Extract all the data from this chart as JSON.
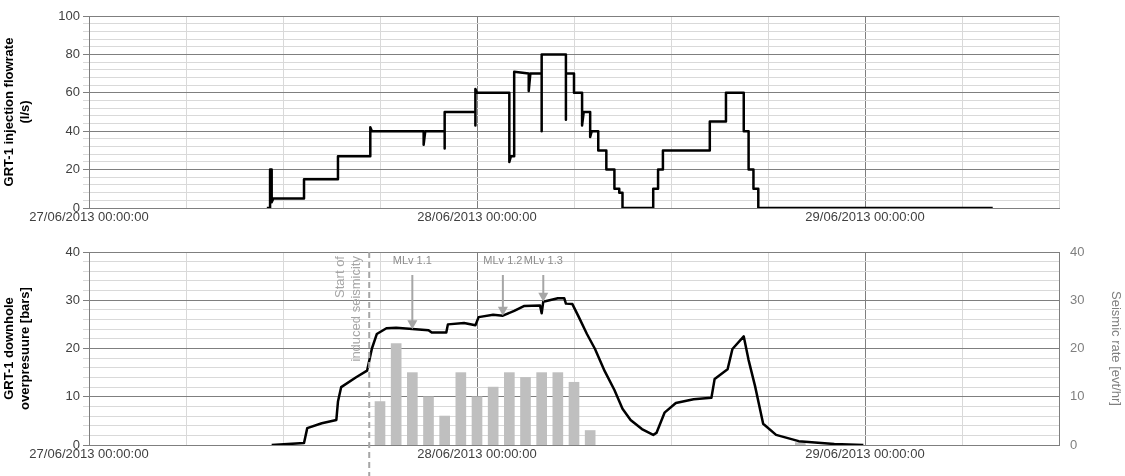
{
  "chart_data": [
    {
      "type": "line",
      "ylabel": "GRT-1 injection flowrate\n(l/s)",
      "marker": "none",
      "line_style": "solid",
      "grid": true,
      "xlim": [
        "2013-06-27T00:00",
        "2013-06-29T12:00"
      ],
      "xticks": [
        {
          "value": "2013-06-27T00:00",
          "label": "27/06/2013 00:00:00"
        },
        {
          "value": "2013-06-27T06:00",
          "label": null
        },
        {
          "value": "2013-06-27T12:00",
          "label": null
        },
        {
          "value": "2013-06-27T18:00",
          "label": null
        },
        {
          "value": "2013-06-28T00:00",
          "label": "28/06/2013 00:00:00"
        },
        {
          "value": "2013-06-28T06:00",
          "label": null
        },
        {
          "value": "2013-06-28T12:00",
          "label": null
        },
        {
          "value": "2013-06-28T18:00",
          "label": null
        },
        {
          "value": "2013-06-29T00:00",
          "label": "29/06/2013 00:00:00"
        },
        {
          "value": "2013-06-29T06:00",
          "label": null
        },
        {
          "value": "2013-06-29T12:00",
          "label": null
        }
      ],
      "ylim": [
        0,
        100
      ],
      "yticks": [
        0,
        {
          "value": 4,
          "label": null
        },
        {
          "value": 8,
          "label": null
        },
        {
          "value": 12,
          "label": null
        },
        {
          "value": 16,
          "label": null
        },
        20,
        {
          "value": 24,
          "label": null
        },
        {
          "value": 28,
          "label": null
        },
        {
          "value": 32,
          "label": null
        },
        {
          "value": 36,
          "label": null
        },
        40,
        {
          "value": 44,
          "label": null
        },
        {
          "value": 48,
          "label": null
        },
        {
          "value": 52,
          "label": null
        },
        {
          "value": 56,
          "label": null
        },
        60,
        {
          "value": 64,
          "label": null
        },
        {
          "value": 68,
          "label": null
        },
        {
          "value": 72,
          "label": null
        },
        {
          "value": 76,
          "label": null
        },
        80,
        {
          "value": 84,
          "label": null
        },
        {
          "value": 88,
          "label": null
        },
        {
          "value": 92,
          "label": null
        },
        {
          "value": 96,
          "label": null
        },
        100
      ],
      "series": [
        {
          "color": "#000000",
          "x": [
            "2013-06-27T11:00",
            "2013-06-27T11:12",
            "2013-06-27T11:12",
            "2013-06-27T11:18",
            "2013-06-27T11:18",
            "2013-06-27T11:24",
            "2013-06-27T13:18",
            "2013-06-27T13:18",
            "2013-06-27T15:24",
            "2013-06-27T15:24",
            "2013-06-27T17:24",
            "2013-06-27T17:24",
            "2013-06-27T17:30",
            "2013-06-27T20:42",
            "2013-06-27T20:42",
            "2013-06-27T20:48",
            "2013-06-27T22:00",
            "2013-06-27T22:00",
            "2013-06-27T22:00",
            "2013-06-27T23:54",
            "2013-06-27T23:54",
            "2013-06-27T23:54",
            "2013-06-28T00:00",
            "2013-06-28T02:00",
            "2013-06-28T02:00",
            "2013-06-28T02:06",
            "2013-06-28T02:18",
            "2013-06-28T02:18",
            "2013-06-28T03:12",
            "2013-06-28T03:12",
            "2013-06-28T03:18",
            "2013-06-28T04:00",
            "2013-06-28T04:00",
            "2013-06-28T04:00",
            "2013-06-28T05:30",
            "2013-06-28T05:30",
            "2013-06-28T05:30",
            "2013-06-28T06:00",
            "2013-06-28T06:00",
            "2013-06-28T06:30",
            "2013-06-28T06:30",
            "2013-06-28T06:36",
            "2013-06-28T07:00",
            "2013-06-28T07:00",
            "2013-06-28T07:06",
            "2013-06-28T07:30",
            "2013-06-28T07:30",
            "2013-06-28T08:00",
            "2013-06-28T08:00",
            "2013-06-28T08:30",
            "2013-06-28T08:30",
            "2013-06-28T08:48",
            "2013-06-28T08:48",
            "2013-06-28T09:00",
            "2013-06-28T09:00",
            "2013-06-28T10:54",
            "2013-06-28T10:54",
            "2013-06-28T11:12",
            "2013-06-28T11:12",
            "2013-06-28T11:30",
            "2013-06-28T11:30",
            "2013-06-28T14:24",
            "2013-06-28T14:24",
            "2013-06-28T15:24",
            "2013-06-28T15:24",
            "2013-06-28T16:30",
            "2013-06-28T16:30",
            "2013-06-28T16:48",
            "2013-06-28T16:48",
            "2013-06-28T17:06",
            "2013-06-28T17:06",
            "2013-06-28T17:24",
            "2013-06-28T17:24",
            "2013-06-29T07:54"
          ],
          "values": [
            0,
            0,
            20,
            20,
            3,
            5,
            5,
            15,
            15,
            27,
            27,
            42,
            40,
            40,
            33,
            40,
            40,
            31,
            50,
            50,
            43,
            62,
            60,
            60,
            24,
            27,
            27,
            71,
            70,
            61,
            70,
            70,
            40,
            80,
            80,
            46,
            70,
            70,
            60,
            60,
            43,
            50,
            50,
            37,
            40,
            40,
            30,
            30,
            20,
            20,
            10,
            10,
            8,
            8,
            0,
            0,
            10,
            10,
            20,
            20,
            30,
            30,
            45,
            45,
            60,
            60,
            40,
            40,
            20,
            20,
            10,
            10,
            0,
            0
          ]
        }
      ]
    },
    {
      "type": "line",
      "ylabel": "GRT-1 downhole\noverpresuure [bars]",
      "y2label": "Seismic rate [evt/hr]",
      "marker": "none",
      "line_style": "solid",
      "grid": true,
      "xlim": [
        "2013-06-27T00:00",
        "2013-06-29T12:00"
      ],
      "xticks": [
        {
          "value": "2013-06-27T00:00",
          "label": "27/06/2013 00:00:00"
        },
        {
          "value": "2013-06-27T06:00",
          "label": null
        },
        {
          "value": "2013-06-27T12:00",
          "label": null
        },
        {
          "value": "2013-06-27T18:00",
          "label": null
        },
        {
          "value": "2013-06-28T00:00",
          "label": "28/06/2013 00:00:00"
        },
        {
          "value": "2013-06-28T06:00",
          "label": null
        },
        {
          "value": "2013-06-28T12:00",
          "label": null
        },
        {
          "value": "2013-06-28T18:00",
          "label": null
        },
        {
          "value": "2013-06-29T00:00",
          "label": "29/06/2013 00:00:00"
        },
        {
          "value": "2013-06-29T06:00",
          "label": null
        },
        {
          "value": "2013-06-29T12:00",
          "label": null
        }
      ],
      "ylim": [
        0,
        40
      ],
      "yticks": [
        0,
        {
          "value": 2,
          "label": null
        },
        {
          "value": 4,
          "label": null
        },
        {
          "value": 6,
          "label": null
        },
        {
          "value": 8,
          "label": null
        },
        10,
        {
          "value": 12,
          "label": null
        },
        {
          "value": 14,
          "label": null
        },
        {
          "value": 16,
          "label": null
        },
        {
          "value": 18,
          "label": null
        },
        20,
        {
          "value": 22,
          "label": null
        },
        {
          "value": 24,
          "label": null
        },
        {
          "value": 26,
          "label": null
        },
        {
          "value": 28,
          "label": null
        },
        30,
        {
          "value": 32,
          "label": null
        },
        {
          "value": 34,
          "label": null
        },
        {
          "value": 36,
          "label": null
        },
        {
          "value": 38,
          "label": null
        },
        40
      ],
      "y2lim": [
        0,
        40
      ],
      "y2ticks": [
        0,
        10,
        20,
        30,
        40
      ],
      "series": [
        {
          "type": "bar",
          "axis": "y2",
          "color": "#bfbfbf",
          "x": [
            "2013-06-27T18:00",
            "2013-06-27T19:00",
            "2013-06-27T20:00",
            "2013-06-27T21:00",
            "2013-06-27T22:00",
            "2013-06-27T23:00",
            "2013-06-28T00:00",
            "2013-06-28T01:00",
            "2013-06-28T02:00",
            "2013-06-28T03:00",
            "2013-06-28T04:00",
            "2013-06-28T05:00",
            "2013-06-28T06:00",
            "2013-06-28T07:00",
            "2013-06-28T20:00"
          ],
          "values": [
            9,
            21,
            15,
            10,
            6,
            15,
            10,
            12,
            15,
            14,
            15,
            15,
            13,
            3,
            0.5
          ]
        },
        {
          "color": "#000000",
          "x": [
            "2013-06-27T11:18",
            "2013-06-27T13:18",
            "2013-06-27T13:30",
            "2013-06-27T14:24",
            "2013-06-27T15:18",
            "2013-06-27T15:24",
            "2013-06-27T15:36",
            "2013-06-27T16:30",
            "2013-06-27T17:12",
            "2013-06-27T17:30",
            "2013-06-27T17:48",
            "2013-06-27T18:24",
            "2013-06-27T19:00",
            "2013-06-27T21:00",
            "2013-06-27T21:12",
            "2013-06-27T22:06",
            "2013-06-27T22:12",
            "2013-06-27T23:12",
            "2013-06-27T23:54",
            "2013-06-28T00:06",
            "2013-06-28T01:00",
            "2013-06-28T01:36",
            "2013-06-28T02:18",
            "2013-06-28T02:54",
            "2013-06-28T03:54",
            "2013-06-28T04:00",
            "2013-06-28T04:06",
            "2013-06-28T05:00",
            "2013-06-28T05:24",
            "2013-06-28T05:30",
            "2013-06-28T05:54",
            "2013-06-28T06:18",
            "2013-06-28T06:48",
            "2013-06-28T07:18",
            "2013-06-28T07:54",
            "2013-06-28T08:30",
            "2013-06-28T09:00",
            "2013-06-28T09:30",
            "2013-06-28T10:12",
            "2013-06-28T10:54",
            "2013-06-28T11:06",
            "2013-06-28T11:36",
            "2013-06-28T12:18",
            "2013-06-28T13:24",
            "2013-06-28T14:30",
            "2013-06-28T14:42",
            "2013-06-28T15:30",
            "2013-06-28T15:48",
            "2013-06-28T16:30",
            "2013-06-28T16:48",
            "2013-06-28T17:12",
            "2013-06-28T17:42",
            "2013-06-28T18:30",
            "2013-06-28T19:54",
            "2013-06-28T22:06",
            "2013-06-28T23:54"
          ],
          "values": [
            0,
            0.4,
            3.5,
            4.5,
            5.2,
            9,
            12,
            14,
            15.4,
            20,
            23,
            24.2,
            24.3,
            23.8,
            23.3,
            23.3,
            25,
            25.3,
            24.8,
            26.5,
            27,
            26.8,
            27.8,
            28.8,
            28.9,
            27.3,
            29.7,
            30.4,
            30.4,
            29.3,
            29.2,
            26.5,
            23,
            19.9,
            15.3,
            11.4,
            7.5,
            5.2,
            3.3,
            2.1,
            2.5,
            6.7,
            8.7,
            9.5,
            9.8,
            13.7,
            15.7,
            19.9,
            22.5,
            17.6,
            12.2,
            4.4,
            2.1,
            0.8,
            0.2,
            0
          ]
        }
      ],
      "ref_lines": [
        {
          "axis": "x",
          "value": "2013-06-27T17:20",
          "label": "Start of\ninduced seismicity",
          "color": "#a6a6a6",
          "line_style": "dashed"
        }
      ],
      "annotations": [
        {
          "text": "MLv 1.1",
          "x": "2013-06-27T20:00",
          "y": 24
        },
        {
          "text": "MLv 1.2",
          "x": "2013-06-28T01:36",
          "y": 26.8
        },
        {
          "text": "MLv 1.3",
          "x": "2013-06-28T04:06",
          "y": 29.7
        }
      ]
    }
  ]
}
